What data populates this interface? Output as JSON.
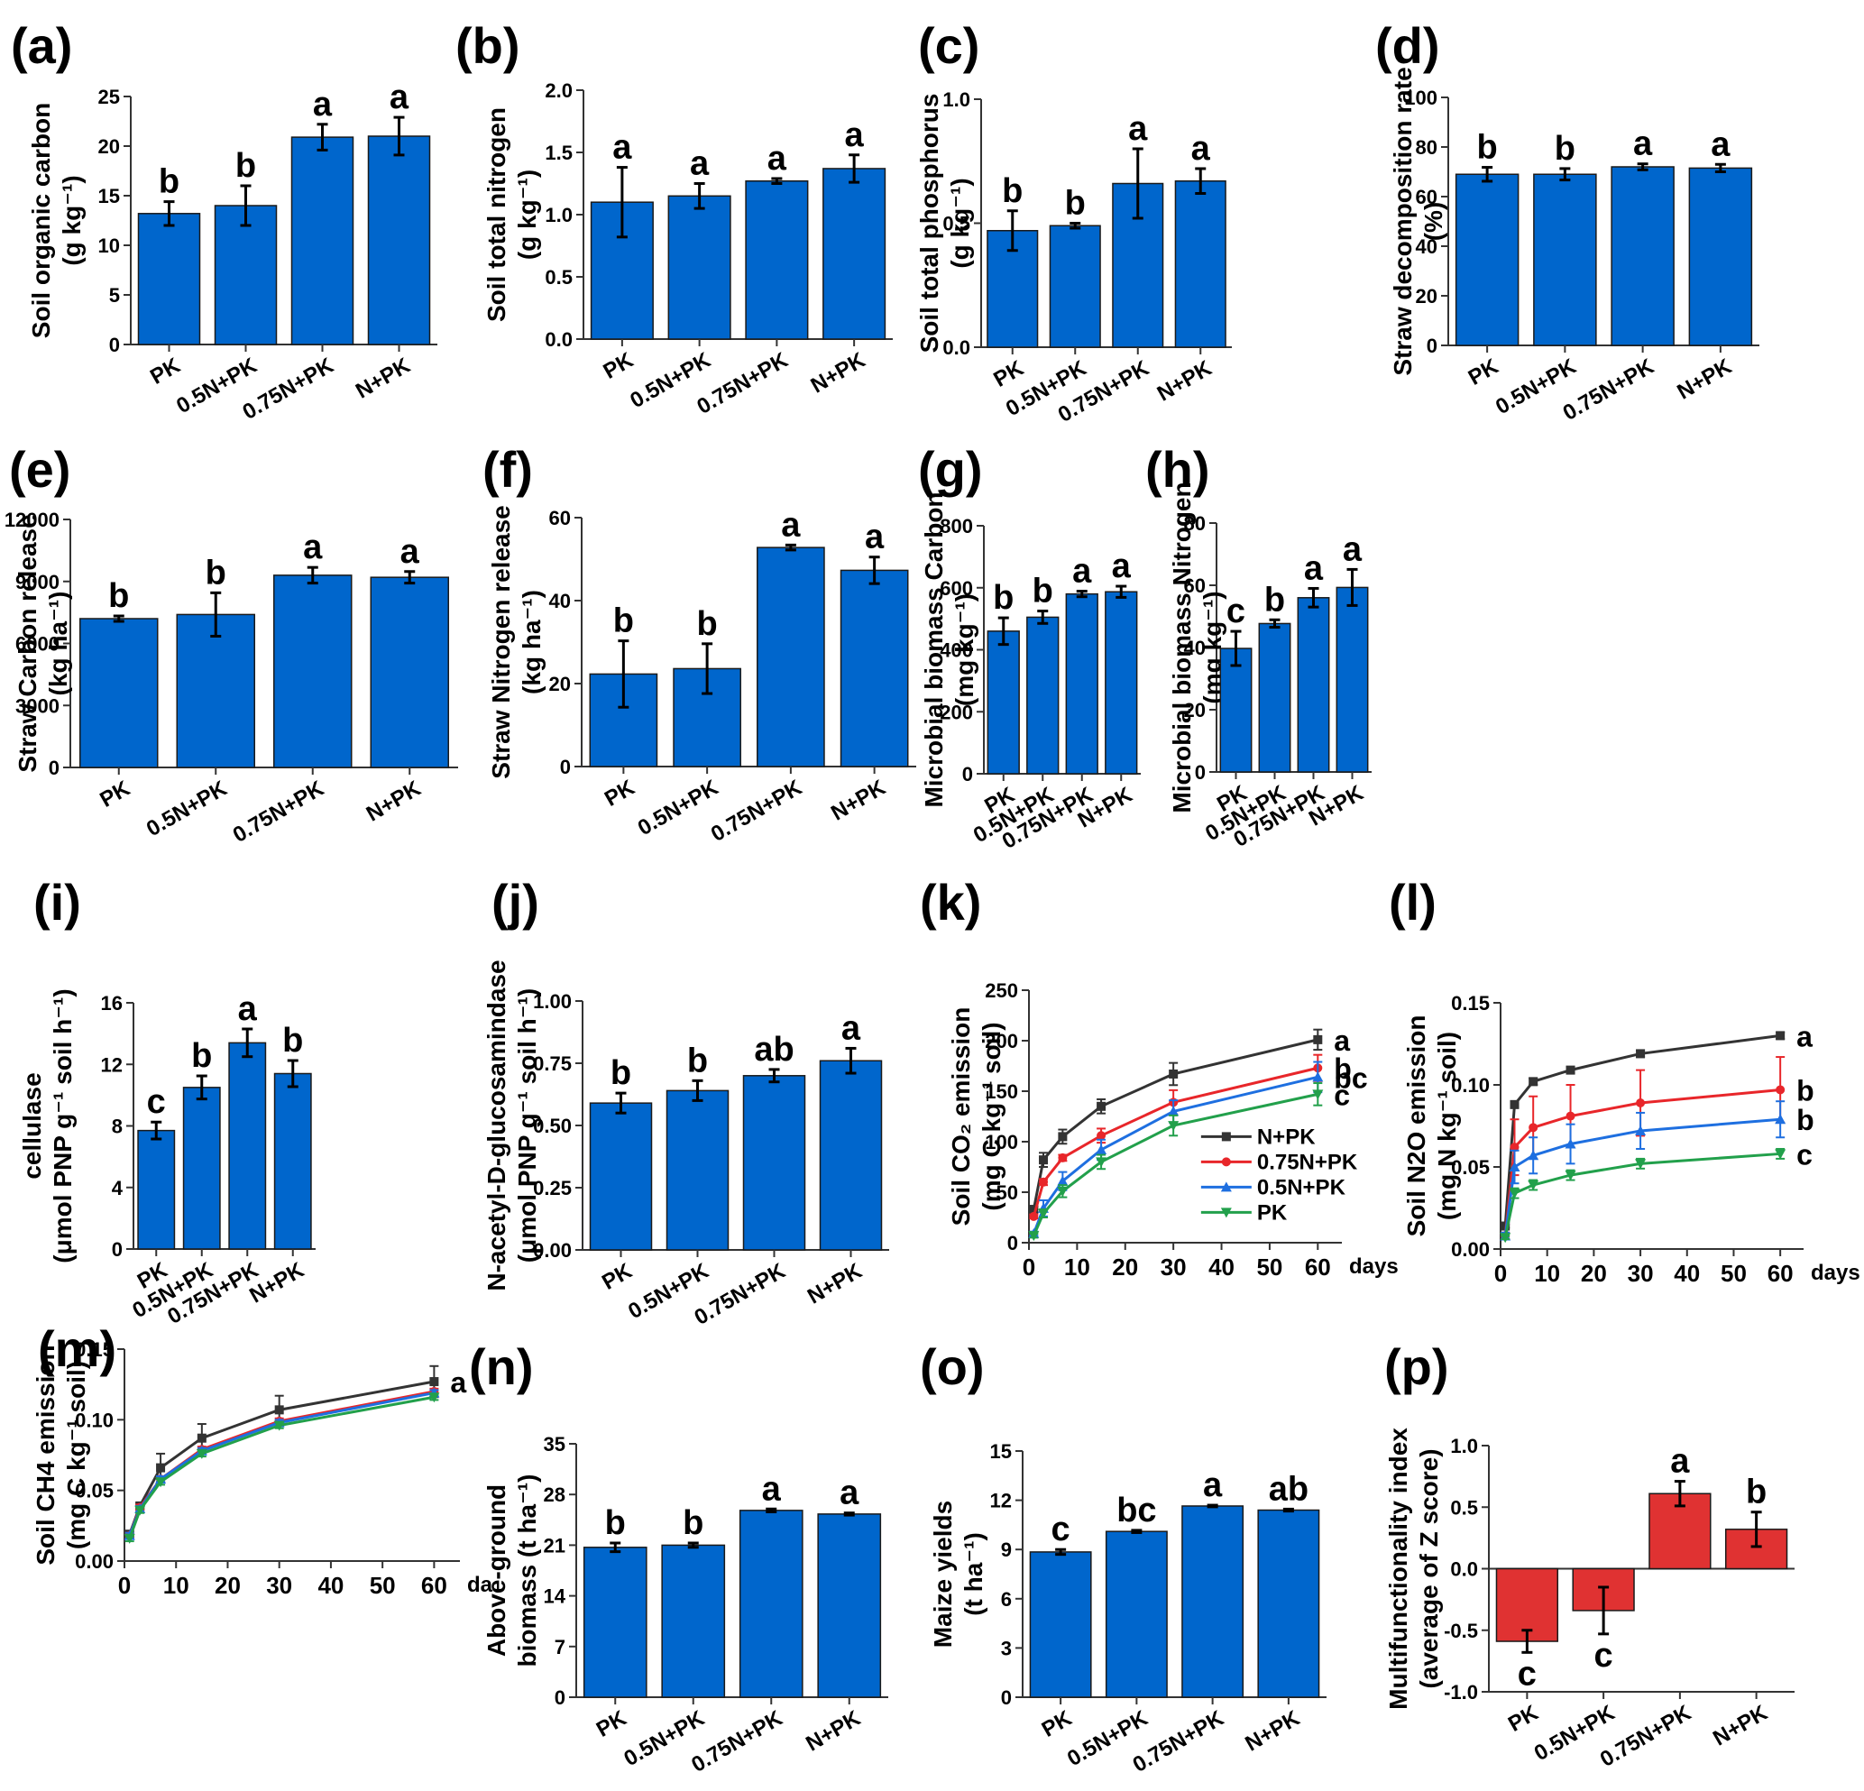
{
  "figure": {
    "colors": {
      "bar_blue": "#0066CC",
      "bar_red": "#E03232",
      "n_pk": "#333333",
      "n075_pk": "#E8262A",
      "n05_pk": "#1E6FE0",
      "pk": "#22A04B"
    }
  },
  "chart_data": [
    {
      "id": "a",
      "panel_label": "(a)",
      "type": "bar",
      "ylabel": [
        "Soil organic carbon",
        "(g kg⁻¹)"
      ],
      "categories": [
        "PK",
        "0.5N+PK",
        "0.75N+PK",
        "N+PK"
      ],
      "values": [
        13.2,
        14.0,
        20.9,
        21.0
      ],
      "errors": [
        1.2,
        2.0,
        1.3,
        1.9
      ],
      "letters": [
        "b",
        "b",
        "a",
        "a"
      ],
      "ylim": [
        0,
        25
      ],
      "yticks": [
        0,
        5,
        10,
        15,
        20,
        25
      ],
      "ytick_labels": [
        "0",
        "5",
        "10",
        "15",
        "20",
        "25"
      ],
      "color": "bar_blue"
    },
    {
      "id": "b",
      "panel_label": "(b)",
      "type": "bar",
      "ylabel": [
        "Soil total nitrogen",
        "(g kg⁻¹)"
      ],
      "categories": [
        "PK",
        "0.5N+PK",
        "0.75N+PK",
        "N+PK"
      ],
      "values": [
        1.1,
        1.15,
        1.27,
        1.37
      ],
      "errors": [
        0.28,
        0.1,
        0.02,
        0.11
      ],
      "letters": [
        "a",
        "a",
        "a",
        "a"
      ],
      "ylim": [
        0,
        2.0
      ],
      "yticks": [
        0,
        0.5,
        1.0,
        1.5,
        2.0
      ],
      "ytick_labels": [
        "0.0",
        "0.5",
        "1.0",
        "1.5",
        "2.0"
      ],
      "color": "bar_blue"
    },
    {
      "id": "c",
      "panel_label": "(c)",
      "type": "bar",
      "ylabel": [
        "Soil total phosphorus",
        "(g kg⁻¹)"
      ],
      "categories": [
        "PK",
        "0.5N+PK",
        "0.75N+PK",
        "N+PK"
      ],
      "values": [
        0.47,
        0.49,
        0.66,
        0.67
      ],
      "errors": [
        0.08,
        0.01,
        0.14,
        0.05
      ],
      "letters": [
        "b",
        "b",
        "a",
        "a"
      ],
      "ylim": [
        0,
        1.0
      ],
      "yticks": [
        0,
        0.5,
        1.0
      ],
      "ytick_labels": [
        "0.0",
        "0.5",
        "1.0"
      ],
      "color": "bar_blue"
    },
    {
      "id": "d",
      "panel_label": "(d)",
      "type": "bar",
      "ylabel": [
        "Straw decomposition rate",
        "(%)"
      ],
      "categories": [
        "PK",
        "0.5N+PK",
        "0.75N+PK",
        "N+PK"
      ],
      "values": [
        69,
        69,
        72,
        71.5
      ],
      "errors": [
        2.8,
        2.3,
        1.2,
        1.5
      ],
      "letters": [
        "b",
        "b",
        "a",
        "a"
      ],
      "ylim": [
        0,
        100
      ],
      "yticks": [
        0,
        20,
        40,
        60,
        80,
        100
      ],
      "ytick_labels": [
        "0",
        "20",
        "40",
        "60",
        "80",
        "100"
      ],
      "color": "bar_blue"
    },
    {
      "id": "e",
      "panel_label": "(e)",
      "type": "bar",
      "ylabel": [
        "Straw Carbon release",
        "(kg ha⁻¹)"
      ],
      "categories": [
        "PK",
        "0.5N+PK",
        "0.75N+PK",
        "N+PK"
      ],
      "values": [
        7200,
        7400,
        9300,
        9200
      ],
      "errors": [
        130,
        1050,
        380,
        280
      ],
      "letters": [
        "b",
        "b",
        "a",
        "a"
      ],
      "ylim": [
        0,
        12000
      ],
      "yticks": [
        0,
        3000,
        6000,
        9000,
        12000
      ],
      "ytick_labels": [
        "0",
        "3000",
        "6000",
        "9000",
        "12000"
      ],
      "color": "bar_blue"
    },
    {
      "id": "f",
      "panel_label": "(f)",
      "type": "bar",
      "ylabel": [
        "Straw Nitrogen release",
        "(kg ha⁻¹)"
      ],
      "categories": [
        "PK",
        "0.5N+PK",
        "0.75N+PK",
        "N+PK"
      ],
      "values": [
        22.3,
        23.6,
        52.8,
        47.3
      ],
      "errors": [
        8.0,
        6.0,
        0.6,
        3.2
      ],
      "letters": [
        "b",
        "b",
        "a",
        "a"
      ],
      "ylim": [
        0,
        60
      ],
      "yticks": [
        0,
        20,
        40,
        60
      ],
      "ytick_labels": [
        "0",
        "20",
        "40",
        "60"
      ],
      "color": "bar_blue"
    },
    {
      "id": "g",
      "panel_label": "(g)",
      "type": "bar",
      "ylabel": [
        "Microbial biomass Carbon",
        "(mg kg⁻¹)"
      ],
      "categories": [
        "PK",
        "0.5N+PK",
        "0.75N+PK",
        "N+PK"
      ],
      "values": [
        460,
        505,
        580,
        587
      ],
      "errors": [
        43,
        20,
        9,
        18
      ],
      "letters": [
        "b",
        "b",
        "a",
        "a"
      ],
      "ylim": [
        0,
        800
      ],
      "yticks": [
        0,
        200,
        400,
        600,
        800
      ],
      "ytick_labels": [
        "0",
        "200",
        "400",
        "600",
        "800"
      ],
      "color": "bar_blue"
    },
    {
      "id": "h",
      "panel_label": "(h)",
      "type": "bar",
      "ylabel": [
        "Microbial biomass Nitrogen",
        "(mg kg⁻¹)"
      ],
      "categories": [
        "PK",
        "0.5N+PK",
        "0.75N+PK",
        "N+PK"
      ],
      "values": [
        39.7,
        47.7,
        56.0,
        59.3
      ],
      "errors": [
        5.5,
        1.2,
        3.0,
        5.8
      ],
      "letters": [
        "c",
        "b",
        "a",
        "a"
      ],
      "ylim": [
        0,
        80
      ],
      "yticks": [
        0,
        20,
        40,
        60,
        80
      ],
      "ytick_labels": [
        "0",
        "20",
        "40",
        "60",
        "80"
      ],
      "color": "bar_blue"
    },
    {
      "id": "i",
      "panel_label": "(i)",
      "type": "bar",
      "ylabel": [
        "cellulase",
        "(μmol PNP g⁻¹ soil h⁻¹)"
      ],
      "categories": [
        "PK",
        "0.5N+PK",
        "0.75N+PK",
        "N+PK"
      ],
      "values": [
        7.7,
        10.5,
        13.4,
        11.4
      ],
      "errors": [
        0.55,
        0.75,
        0.9,
        0.85
      ],
      "letters": [
        "c",
        "b",
        "a",
        "b"
      ],
      "ylim": [
        0,
        16
      ],
      "yticks": [
        0,
        4,
        8,
        12,
        16
      ],
      "ytick_labels": [
        "0",
        "4",
        "8",
        "12",
        "16"
      ],
      "color": "bar_blue"
    },
    {
      "id": "j",
      "panel_label": "(j)",
      "type": "bar",
      "ylabel": [
        "N-acetyl-D-glucosamindase",
        "(μmol PNP g⁻¹ soil h⁻¹)"
      ],
      "categories": [
        "PK",
        "0.5N+PK",
        "0.75N+PK",
        "N+PK"
      ],
      "values": [
        0.59,
        0.64,
        0.7,
        0.76
      ],
      "errors": [
        0.04,
        0.04,
        0.025,
        0.05
      ],
      "letters": [
        "b",
        "b",
        "ab",
        "a"
      ],
      "ylim": [
        0,
        1.0
      ],
      "yticks": [
        0,
        0.25,
        0.5,
        0.75,
        1.0
      ],
      "ytick_labels": [
        "0.00",
        "0.25",
        "0.50",
        "0.75",
        "1.00"
      ],
      "color": "bar_blue"
    },
    {
      "id": "k",
      "panel_label": "(k)",
      "type": "line",
      "ylabel": [
        "Soil CO₂ emission",
        "(mg C kg⁻¹ soil)"
      ],
      "x": [
        1,
        3,
        7,
        15,
        30,
        60
      ],
      "xlabel": "days",
      "xlim": [
        0,
        65
      ],
      "xticks": [
        0,
        10,
        20,
        30,
        40,
        50,
        60
      ],
      "xtick_labels": [
        "0",
        "10",
        "20",
        "30",
        "40",
        "50",
        "60"
      ],
      "ylim": [
        0,
        250
      ],
      "yticks": [
        0,
        50,
        100,
        150,
        200,
        250
      ],
      "ytick_labels": [
        "0",
        "50",
        "100",
        "150",
        "200",
        "250"
      ],
      "series": [
        {
          "name": "N+PK",
          "color": "n_pk",
          "marker": "square",
          "values": [
            33,
            82,
            105,
            135,
            167,
            201
          ],
          "errors": [
            3,
            7,
            7,
            7,
            11,
            10
          ],
          "letter": "a"
        },
        {
          "name": "0.75N+PK",
          "color": "n075_pk",
          "marker": "circle",
          "values": [
            26,
            60,
            84,
            106,
            139,
            173
          ],
          "errors": [
            2,
            3,
            3,
            7,
            12,
            13
          ],
          "letter": "b"
        },
        {
          "name": "0.5N+PK",
          "color": "n05_pk",
          "marker": "triangle-up",
          "values": [
            9,
            34,
            61,
            92,
            130,
            164
          ],
          "errors": [
            2,
            8,
            9,
            10,
            11,
            15
          ],
          "letter": "bc"
        },
        {
          "name": "PK",
          "color": "pk",
          "marker": "triangle-down",
          "values": [
            7,
            29,
            51,
            80,
            116,
            147
          ],
          "errors": [
            2,
            4,
            6,
            7,
            10,
            11
          ],
          "letter": "c"
        }
      ],
      "legend": "bottom-right"
    },
    {
      "id": "l",
      "panel_label": "(l)",
      "type": "line",
      "ylabel": [
        "Soil N2O emission",
        "(mg N kg⁻¹ soil)"
      ],
      "x": [
        1,
        3,
        7,
        15,
        30,
        60
      ],
      "xlabel": "days",
      "xlim": [
        0,
        65
      ],
      "xticks": [
        0,
        10,
        20,
        30,
        40,
        50,
        60
      ],
      "xtick_labels": [
        "0",
        "10",
        "20",
        "30",
        "40",
        "50",
        "60"
      ],
      "ylim": [
        0,
        0.15
      ],
      "yticks": [
        0,
        0.05,
        0.1,
        0.15
      ],
      "ytick_labels": [
        "0.00",
        "0.05",
        "0.10",
        "0.15"
      ],
      "series": [
        {
          "name": "N+PK",
          "color": "n_pk",
          "marker": "square",
          "values": [
            0.014,
            0.088,
            0.102,
            0.109,
            0.119,
            0.13
          ],
          "errors": [
            0.001,
            0.002,
            0.002,
            0.002,
            0.002,
            0.002
          ],
          "letter": "a"
        },
        {
          "name": "0.75N+PK",
          "color": "n075_pk",
          "marker": "circle",
          "values": [
            0.008,
            0.062,
            0.074,
            0.081,
            0.089,
            0.097
          ],
          "errors": [
            0.002,
            0.017,
            0.019,
            0.019,
            0.02,
            0.02
          ],
          "letter": "b"
        },
        {
          "name": "0.5N+PK",
          "color": "n05_pk",
          "marker": "triangle-up",
          "values": [
            0.008,
            0.05,
            0.057,
            0.064,
            0.072,
            0.079
          ],
          "errors": [
            0.002,
            0.01,
            0.011,
            0.012,
            0.011,
            0.011
          ],
          "letter": "b"
        },
        {
          "name": "PK",
          "color": "pk",
          "marker": "triangle-down",
          "values": [
            0.007,
            0.034,
            0.039,
            0.045,
            0.052,
            0.058
          ],
          "errors": [
            0.001,
            0.003,
            0.003,
            0.003,
            0.003,
            0.003
          ],
          "letter": "c"
        }
      ]
    },
    {
      "id": "m",
      "panel_label": "(m)",
      "type": "line",
      "ylabel": [
        "Soil CH4 emission",
        "(mg C kg⁻¹ soil)"
      ],
      "x": [
        1,
        3,
        7,
        15,
        30,
        60
      ],
      "xlabel": "da",
      "xlim": [
        0,
        65
      ],
      "xticks": [
        0,
        10,
        20,
        30,
        40,
        50,
        60
      ],
      "xtick_labels": [
        "0",
        "10",
        "20",
        "30",
        "40",
        "50",
        "60"
      ],
      "ylim": [
        0,
        0.15
      ],
      "yticks": [
        0,
        0.05,
        0.1,
        0.15
      ],
      "ytick_labels": [
        "0.00",
        "0.05",
        "0.10",
        "0.15"
      ],
      "series": [
        {
          "name": "N+PK",
          "color": "n_pk",
          "marker": "square",
          "values": [
            0.019,
            0.039,
            0.066,
            0.087,
            0.107,
            0.127
          ],
          "errors": [
            0.002,
            0.002,
            0.01,
            0.01,
            0.01,
            0.011
          ],
          "letter": "a"
        },
        {
          "name": "0.75N+PK",
          "color": "n075_pk",
          "marker": "circle",
          "values": [
            0.018,
            0.038,
            0.058,
            0.079,
            0.099,
            0.12
          ],
          "errors": [
            0.002,
            0.002,
            0.002,
            0.002,
            0.002,
            0.002
          ],
          "letter": ""
        },
        {
          "name": "0.5N+PK",
          "color": "n05_pk",
          "marker": "triangle-up",
          "values": [
            0.018,
            0.037,
            0.058,
            0.078,
            0.098,
            0.119
          ],
          "errors": [
            0.002,
            0.002,
            0.002,
            0.002,
            0.002,
            0.002
          ],
          "letter": ""
        },
        {
          "name": "PK",
          "color": "pk",
          "marker": "triangle-down",
          "values": [
            0.016,
            0.036,
            0.056,
            0.076,
            0.096,
            0.116
          ],
          "errors": [
            0.002,
            0.002,
            0.002,
            0.002,
            0.002,
            0.002
          ],
          "letter": ""
        }
      ]
    },
    {
      "id": "n",
      "panel_label": "(n)",
      "type": "bar",
      "ylabel": [
        "Above-ground",
        "biomass (t ha⁻¹)"
      ],
      "categories": [
        "PK",
        "0.5N+PK",
        "0.75N+PK",
        "N+PK"
      ],
      "values": [
        20.7,
        21.0,
        25.8,
        25.3
      ],
      "errors": [
        0.6,
        0.3,
        0.2,
        0.15
      ],
      "letters": [
        "b",
        "b",
        "a",
        "a"
      ],
      "ylim": [
        0,
        35
      ],
      "yticks": [
        0,
        7,
        14,
        21,
        28,
        35
      ],
      "ytick_labels": [
        "0",
        "7",
        "14",
        "21",
        "28",
        "35"
      ],
      "color": "bar_blue"
    },
    {
      "id": "o",
      "panel_label": "(o)",
      "type": "bar",
      "ylabel": [
        "Maize yields",
        "(t ha⁻¹)"
      ],
      "categories": [
        "PK",
        "0.5N+PK",
        "0.75N+PK",
        "N+PK"
      ],
      "values": [
        8.85,
        10.1,
        11.65,
        11.4
      ],
      "errors": [
        0.15,
        0.07,
        0.05,
        0.06
      ],
      "letters": [
        "c",
        "bc",
        "a",
        "ab"
      ],
      "ylim": [
        0,
        15
      ],
      "yticks": [
        0,
        3,
        6,
        9,
        12,
        15
      ],
      "ytick_labels": [
        "0",
        "3",
        "6",
        "9",
        "12",
        "15"
      ],
      "color": "bar_blue"
    },
    {
      "id": "p",
      "panel_label": "(p)",
      "type": "bar",
      "ylabel": [
        "Multifunctionality index",
        "(average of Z score)"
      ],
      "categories": [
        "PK",
        "0.5N+PK",
        "0.75N+PK",
        "N+PK"
      ],
      "values": [
        -0.59,
        -0.34,
        0.61,
        0.32
      ],
      "errors": [
        0.09,
        0.19,
        0.1,
        0.14
      ],
      "letters": [
        "c",
        "c",
        "a",
        "b"
      ],
      "ylim": [
        -1.0,
        1.0
      ],
      "yticks": [
        -1.0,
        -0.5,
        0,
        0.5,
        1.0
      ],
      "ytick_labels": [
        "-1.0",
        "-0.5",
        "0.0",
        "0.5",
        "1.0"
      ],
      "color": "bar_red"
    }
  ]
}
